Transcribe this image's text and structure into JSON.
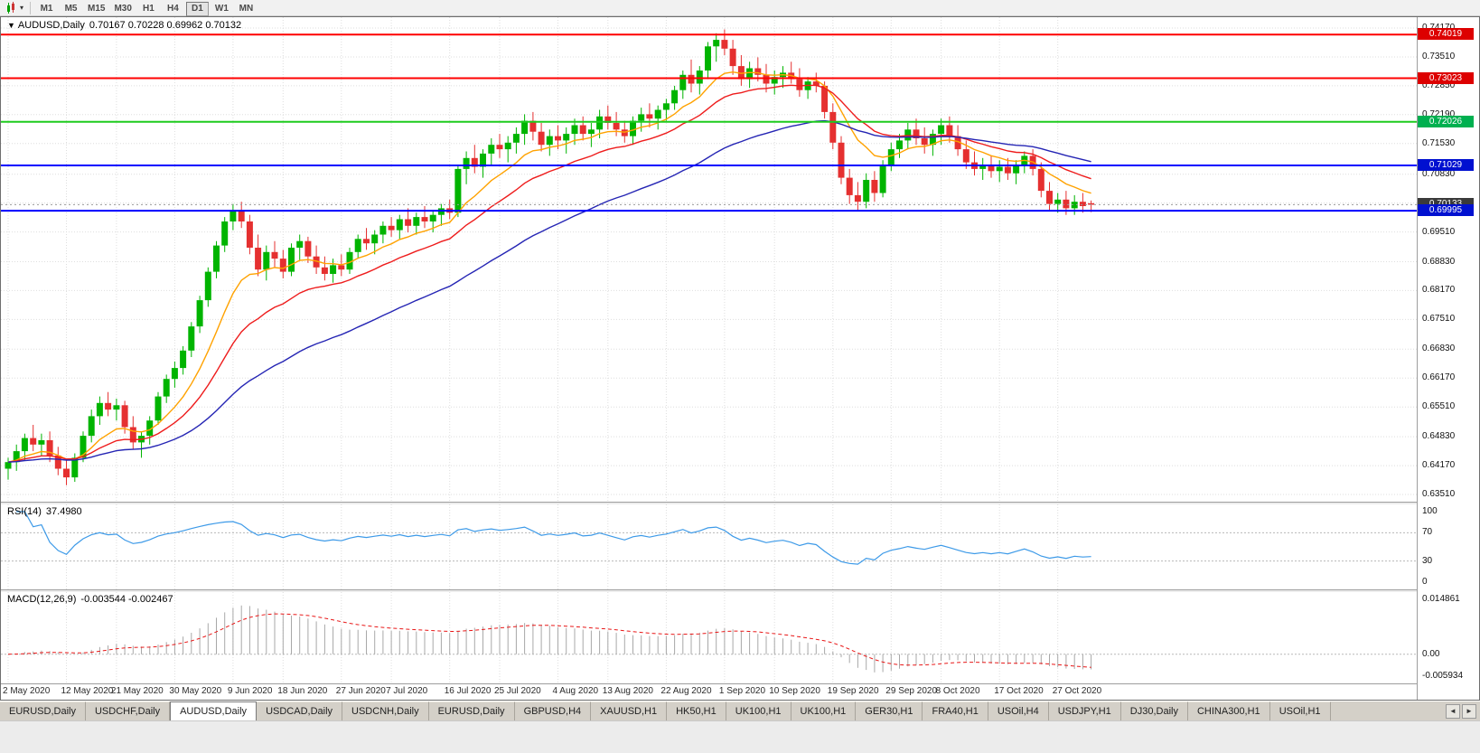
{
  "toolbar": {
    "caret": "▾",
    "timeframes": [
      "M1",
      "M5",
      "M15",
      "M30",
      "H1",
      "H4",
      "D1",
      "W1",
      "MN"
    ],
    "active": "D1"
  },
  "chart_header": {
    "collapse_icon": "▼",
    "symbol": "AUDUSD,Daily",
    "ohlc": "0.70167 0.70228 0.69962 0.70132"
  },
  "colors": {
    "bull": "#00b400",
    "bear": "#e53030",
    "grid": "#dedede",
    "current_price_line": "#9a9a9a",
    "level_dash": "#b8b8b8"
  },
  "chart_data": {
    "type": "candlestick",
    "title": "AUDUSD,Daily",
    "y_range": [
      0.63345,
      0.74418
    ],
    "y_ticks": [
      "0.74170",
      "0.73510",
      "0.72850",
      "0.72190",
      "0.71530",
      "0.70830",
      "0.70170",
      "0.69510",
      "0.68830",
      "0.68170",
      "0.67510",
      "0.66830",
      "0.66170",
      "0.65510",
      "0.64830",
      "0.64170",
      "0.63510"
    ],
    "x_labels": [
      "2 May 2020",
      "12 May 2020",
      "21 May 2020",
      "30 May 2020",
      "9 Jun 2020",
      "18 Jun 2020",
      "27 Jun 2020",
      "7 Jul 2020",
      "16 Jul 2020",
      "25 Jul 2020",
      "4 Aug 2020",
      "13 Aug 2020",
      "22 Aug 2020",
      "1 Sep 2020",
      "10 Sep 2020",
      "19 Sep 2020",
      "29 Sep 2020",
      "8 Oct 2020",
      "17 Oct 2020",
      "27 Oct 2020"
    ],
    "label_indices": [
      0,
      7,
      13,
      20,
      27,
      33,
      40,
      46,
      53,
      59,
      66,
      72,
      79,
      86,
      92,
      99,
      106,
      112,
      119,
      126
    ],
    "h_lines": [
      {
        "price": 0.74019,
        "color": "#ff0000",
        "width": 2
      },
      {
        "price": 0.73023,
        "color": "#ff0000",
        "width": 2
      },
      {
        "price": 0.72026,
        "color": "#1ecb1e",
        "width": 2
      },
      {
        "price": 0.71029,
        "color": "#0000ff",
        "width": 2
      },
      {
        "price": 0.69995,
        "color": "#0000ff",
        "width": 2
      }
    ],
    "current_price": {
      "value": 0.70133,
      "tag_bg": "#3a3a3a"
    },
    "price_tags": [
      {
        "text": "0.74019",
        "bg": "#dd0000"
      },
      {
        "text": "0.73023",
        "bg": "#dd0000"
      },
      {
        "text": "0.72026",
        "bg": "#00b050"
      },
      {
        "text": "0.71029",
        "bg": "#0010d0"
      },
      {
        "text": "0.70133",
        "bg": "#3a3a3a"
      },
      {
        "text": "0.69995",
        "bg": "#0010d0"
      }
    ],
    "moving_averages": [
      {
        "period": 10,
        "color": "#ffa200"
      },
      {
        "period": 20,
        "color": "#ee1c1c"
      },
      {
        "period": 45,
        "color": "#2525b4"
      }
    ],
    "rsi": {
      "label": "RSI(14)",
      "value": "37.4980",
      "period": 14,
      "color": "#3d9ae8",
      "scale_labels": [
        "100",
        "70",
        "30",
        "0"
      ],
      "levels": [
        70,
        30
      ],
      "range": [
        0,
        100
      ]
    },
    "macd": {
      "label": "MACD(12,26,9)",
      "values_text": "-0.003544 -0.002467",
      "fast": 12,
      "slow": 26,
      "signal_period": 9,
      "histogram_color": "#a8a8a8",
      "signal_color": "#e81717",
      "scale_labels": [
        "0.014861",
        "0.00",
        "-0.005934"
      ],
      "range": [
        -0.005934,
        0.014861
      ]
    },
    "candles": [
      [
        0.641,
        0.6435,
        0.6385,
        0.6425
      ],
      [
        0.6425,
        0.6465,
        0.6405,
        0.645
      ],
      [
        0.645,
        0.649,
        0.643,
        0.648
      ],
      [
        0.648,
        0.651,
        0.645,
        0.6465
      ],
      [
        0.6465,
        0.649,
        0.644,
        0.6475
      ],
      [
        0.6475,
        0.6495,
        0.6425,
        0.644
      ],
      [
        0.644,
        0.646,
        0.6395,
        0.641
      ],
      [
        0.641,
        0.643,
        0.6372,
        0.639
      ],
      [
        0.639,
        0.6445,
        0.638,
        0.6435
      ],
      [
        0.6435,
        0.6495,
        0.6425,
        0.6485
      ],
      [
        0.6485,
        0.6545,
        0.647,
        0.653
      ],
      [
        0.653,
        0.6575,
        0.651,
        0.656
      ],
      [
        0.656,
        0.6585,
        0.653,
        0.6545
      ],
      [
        0.6545,
        0.657,
        0.652,
        0.6555
      ],
      [
        0.6555,
        0.6565,
        0.649,
        0.6505
      ],
      [
        0.6505,
        0.653,
        0.6455,
        0.647
      ],
      [
        0.647,
        0.6495,
        0.6435,
        0.6485
      ],
      [
        0.6485,
        0.653,
        0.6465,
        0.652
      ],
      [
        0.652,
        0.6585,
        0.651,
        0.6575
      ],
      [
        0.6575,
        0.6625,
        0.656,
        0.6615
      ],
      [
        0.6615,
        0.6655,
        0.6595,
        0.664
      ],
      [
        0.664,
        0.669,
        0.6625,
        0.668
      ],
      [
        0.668,
        0.6745,
        0.6665,
        0.6735
      ],
      [
        0.6735,
        0.6805,
        0.672,
        0.6795
      ],
      [
        0.6795,
        0.687,
        0.678,
        0.686
      ],
      [
        0.686,
        0.693,
        0.6845,
        0.692
      ],
      [
        0.692,
        0.6985,
        0.6905,
        0.6975
      ],
      [
        0.6975,
        0.7015,
        0.6955,
        0.7
      ],
      [
        0.7,
        0.702,
        0.696,
        0.6975
      ],
      [
        0.6975,
        0.699,
        0.69,
        0.6915
      ],
      [
        0.6915,
        0.6945,
        0.685,
        0.6865
      ],
      [
        0.6865,
        0.692,
        0.684,
        0.6905
      ],
      [
        0.6905,
        0.693,
        0.687,
        0.689
      ],
      [
        0.689,
        0.691,
        0.6845,
        0.686
      ],
      [
        0.686,
        0.6925,
        0.685,
        0.6915
      ],
      [
        0.6915,
        0.6945,
        0.6885,
        0.693
      ],
      [
        0.693,
        0.694,
        0.688,
        0.6895
      ],
      [
        0.6895,
        0.692,
        0.6855,
        0.687
      ],
      [
        0.687,
        0.6895,
        0.684,
        0.6855
      ],
      [
        0.6855,
        0.689,
        0.6835,
        0.6875
      ],
      [
        0.6875,
        0.69,
        0.685,
        0.6865
      ],
      [
        0.6865,
        0.6915,
        0.6855,
        0.6905
      ],
      [
        0.6905,
        0.6945,
        0.689,
        0.6935
      ],
      [
        0.6935,
        0.696,
        0.691,
        0.6925
      ],
      [
        0.6925,
        0.6955,
        0.69,
        0.6945
      ],
      [
        0.6945,
        0.6975,
        0.6925,
        0.6965
      ],
      [
        0.6965,
        0.6985,
        0.694,
        0.6955
      ],
      [
        0.6955,
        0.699,
        0.6935,
        0.698
      ],
      [
        0.698,
        0.7005,
        0.695,
        0.6965
      ],
      [
        0.6965,
        0.6995,
        0.6945,
        0.6985
      ],
      [
        0.6985,
        0.701,
        0.696,
        0.6975
      ],
      [
        0.6975,
        0.7,
        0.695,
        0.699
      ],
      [
        0.699,
        0.7015,
        0.6965,
        0.7005
      ],
      [
        0.7005,
        0.7025,
        0.698,
        0.6995
      ],
      [
        0.6995,
        0.7105,
        0.6985,
        0.7095
      ],
      [
        0.7095,
        0.7135,
        0.706,
        0.712
      ],
      [
        0.712,
        0.715,
        0.7085,
        0.71
      ],
      [
        0.71,
        0.714,
        0.7075,
        0.713
      ],
      [
        0.713,
        0.7165,
        0.7105,
        0.715
      ],
      [
        0.715,
        0.7175,
        0.712,
        0.714
      ],
      [
        0.714,
        0.717,
        0.711,
        0.7155
      ],
      [
        0.7155,
        0.719,
        0.713,
        0.7175
      ],
      [
        0.7175,
        0.722,
        0.715,
        0.7205
      ],
      [
        0.7205,
        0.7225,
        0.716,
        0.718
      ],
      [
        0.718,
        0.72,
        0.7135,
        0.715
      ],
      [
        0.715,
        0.7185,
        0.7125,
        0.717
      ],
      [
        0.717,
        0.7195,
        0.714,
        0.716
      ],
      [
        0.716,
        0.719,
        0.713,
        0.7175
      ],
      [
        0.7175,
        0.721,
        0.715,
        0.7195
      ],
      [
        0.7195,
        0.7215,
        0.716,
        0.7175
      ],
      [
        0.7175,
        0.72,
        0.7145,
        0.7185
      ],
      [
        0.7185,
        0.723,
        0.7165,
        0.7215
      ],
      [
        0.7215,
        0.724,
        0.7185,
        0.72
      ],
      [
        0.72,
        0.7225,
        0.717,
        0.7185
      ],
      [
        0.7185,
        0.7205,
        0.7155,
        0.717
      ],
      [
        0.717,
        0.7215,
        0.715,
        0.7205
      ],
      [
        0.7205,
        0.7235,
        0.718,
        0.722
      ],
      [
        0.722,
        0.7245,
        0.719,
        0.721
      ],
      [
        0.721,
        0.724,
        0.7185,
        0.723
      ],
      [
        0.723,
        0.7255,
        0.7205,
        0.7245
      ],
      [
        0.7245,
        0.7285,
        0.723,
        0.7275
      ],
      [
        0.7275,
        0.732,
        0.7255,
        0.731
      ],
      [
        0.731,
        0.7345,
        0.727,
        0.729
      ],
      [
        0.729,
        0.733,
        0.7265,
        0.732
      ],
      [
        0.732,
        0.7385,
        0.73,
        0.7375
      ],
      [
        0.7375,
        0.7405,
        0.734,
        0.739
      ],
      [
        0.739,
        0.7414,
        0.7355,
        0.737
      ],
      [
        0.737,
        0.739,
        0.731,
        0.733
      ],
      [
        0.733,
        0.7355,
        0.7285,
        0.73
      ],
      [
        0.73,
        0.734,
        0.728,
        0.7325
      ],
      [
        0.7325,
        0.735,
        0.7295,
        0.731
      ],
      [
        0.731,
        0.7335,
        0.727,
        0.729
      ],
      [
        0.729,
        0.732,
        0.7265,
        0.7305
      ],
      [
        0.7305,
        0.733,
        0.728,
        0.7315
      ],
      [
        0.7315,
        0.734,
        0.729,
        0.73
      ],
      [
        0.73,
        0.7325,
        0.726,
        0.7275
      ],
      [
        0.7275,
        0.7305,
        0.7255,
        0.7295
      ],
      [
        0.7295,
        0.7315,
        0.727,
        0.7285
      ],
      [
        0.7285,
        0.7295,
        0.721,
        0.7225
      ],
      [
        0.7225,
        0.7245,
        0.714,
        0.7155
      ],
      [
        0.7155,
        0.717,
        0.706,
        0.7075
      ],
      [
        0.7075,
        0.7095,
        0.7015,
        0.7035
      ],
      [
        0.7035,
        0.7065,
        0.7,
        0.702
      ],
      [
        0.702,
        0.7085,
        0.7005,
        0.707
      ],
      [
        0.707,
        0.709,
        0.702,
        0.704
      ],
      [
        0.704,
        0.7115,
        0.703,
        0.7105
      ],
      [
        0.7105,
        0.7155,
        0.709,
        0.714
      ],
      [
        0.714,
        0.7175,
        0.712,
        0.716
      ],
      [
        0.716,
        0.72,
        0.714,
        0.7185
      ],
      [
        0.7185,
        0.721,
        0.715,
        0.7165
      ],
      [
        0.7165,
        0.719,
        0.713,
        0.715
      ],
      [
        0.715,
        0.7185,
        0.7125,
        0.7175
      ],
      [
        0.7175,
        0.721,
        0.715,
        0.7195
      ],
      [
        0.7195,
        0.7215,
        0.7155,
        0.717
      ],
      [
        0.717,
        0.7195,
        0.7125,
        0.714
      ],
      [
        0.714,
        0.716,
        0.7095,
        0.711
      ],
      [
        0.711,
        0.7135,
        0.708,
        0.7095
      ],
      [
        0.7095,
        0.712,
        0.707,
        0.7105
      ],
      [
        0.7105,
        0.7125,
        0.7075,
        0.709
      ],
      [
        0.709,
        0.7115,
        0.7065,
        0.71
      ],
      [
        0.71,
        0.712,
        0.707,
        0.7085
      ],
      [
        0.7085,
        0.7115,
        0.706,
        0.7105
      ],
      [
        0.7105,
        0.7135,
        0.7085,
        0.7125
      ],
      [
        0.7125,
        0.714,
        0.708,
        0.7095
      ],
      [
        0.7095,
        0.711,
        0.703,
        0.7045
      ],
      [
        0.7045,
        0.7065,
        0.7,
        0.7015
      ],
      [
        0.7015,
        0.704,
        0.6995,
        0.7025
      ],
      [
        0.7025,
        0.7045,
        0.699,
        0.7005
      ],
      [
        0.7005,
        0.7035,
        0.699,
        0.702
      ],
      [
        0.702,
        0.704,
        0.6995,
        0.701
      ],
      [
        0.70167,
        0.70228,
        0.69962,
        0.70132
      ]
    ]
  },
  "tabs": {
    "left_arrow": "◄",
    "right_arrow": "►",
    "active_index": 2,
    "items": [
      "EURUSD,Daily",
      "USDCHF,Daily",
      "AUDUSD,Daily",
      "USDCAD,Daily",
      "USDCNH,Daily",
      "EURUSD,Daily",
      "GBPUSD,H4",
      "XAUUSD,H1",
      "HK50,H1",
      "UK100,H1",
      "UK100,H1",
      "GER30,H1",
      "FRA40,H1",
      "USOil,H4",
      "USDJPY,H1",
      "DJ30,Daily",
      "CHINA300,H1",
      "USOil,H1"
    ]
  }
}
